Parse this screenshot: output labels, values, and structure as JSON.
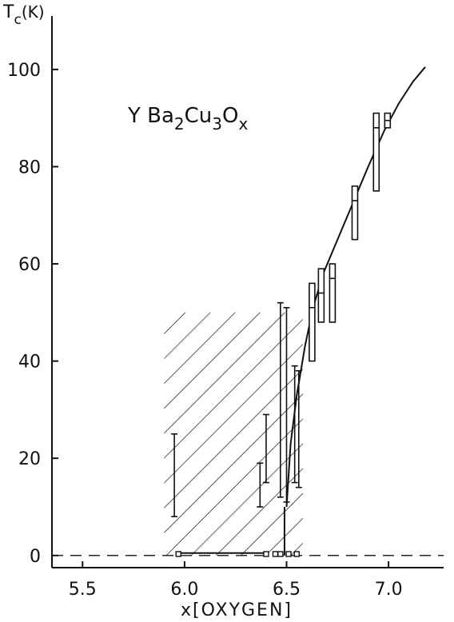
{
  "chart_data": {
    "type": "scatter",
    "title": "",
    "annotation": {
      "base": "Y Ba",
      "sub1": "2",
      "mid1": "Cu",
      "sub2": "3",
      "mid2": "O",
      "sub3": "x"
    },
    "ylabel": {
      "main": "T",
      "sub": "c",
      "unit": "(K)"
    },
    "xlabel": "x[OXYGEN]",
    "xlim": [
      5.35,
      7.27
    ],
    "ylim": [
      -2.5,
      111
    ],
    "x_ticks": [
      {
        "value": 5.5,
        "label": "5.5"
      },
      {
        "value": 6.0,
        "label": "6.0"
      },
      {
        "value": 6.5,
        "label": "6.5"
      },
      {
        "value": 7.0,
        "label": "7.0"
      }
    ],
    "y_ticks": [
      {
        "value": 0,
        "label": "0"
      },
      {
        "value": 20,
        "label": "20"
      },
      {
        "value": 40,
        "label": "40"
      },
      {
        "value": 60,
        "label": "60"
      },
      {
        "value": 80,
        "label": "80"
      },
      {
        "value": 100,
        "label": "100"
      }
    ],
    "grid": false,
    "hatched_region": {
      "x": [
        5.9,
        6.58
      ],
      "y": [
        0,
        50
      ]
    },
    "zero_dashed_line": 0,
    "error_bars": [
      {
        "x": 5.95,
        "low": 8,
        "high": 25
      },
      {
        "x": 6.37,
        "low": 10,
        "high": 19
      },
      {
        "x": 6.4,
        "low": 15,
        "high": 29
      },
      {
        "x": 6.47,
        "low": 12,
        "high": 52
      },
      {
        "x": 6.5,
        "low": 11,
        "high": 51
      },
      {
        "x": 6.54,
        "low": 15,
        "high": 39
      },
      {
        "x": 6.56,
        "low": 14,
        "high": 38
      }
    ],
    "boxes": [
      {
        "x": 6.625,
        "low": 40,
        "high": 56,
        "mid": 51
      },
      {
        "x": 6.67,
        "low": 48,
        "high": 59,
        "mid": 54
      },
      {
        "x": 6.725,
        "low": 48,
        "high": 60,
        "mid": 57
      },
      {
        "x": 6.835,
        "low": 65,
        "high": 76,
        "mid": 73
      },
      {
        "x": 6.94,
        "low": 75,
        "high": 91,
        "mid": 88
      },
      {
        "x": 6.995,
        "low": 88,
        "high": 91,
        "mid": 89.5
      }
    ],
    "zero_points": [
      {
        "x": 5.97,
        "y": 0.3
      },
      {
        "x": 6.4,
        "y": 0.3
      },
      {
        "x": 6.445,
        "y": 0.3
      },
      {
        "x": 6.47,
        "y": 0.3
      },
      {
        "x": 6.51,
        "y": 0.3
      },
      {
        "x": 6.55,
        "y": 0.3
      }
    ],
    "zero_segment": {
      "x": [
        5.97,
        6.4
      ],
      "y": 0.5
    },
    "curve": [
      [
        6.5,
        10
      ],
      [
        6.52,
        23
      ],
      [
        6.55,
        33
      ],
      [
        6.59,
        43
      ],
      [
        6.63,
        51
      ],
      [
        6.68,
        58
      ],
      [
        6.75,
        65
      ],
      [
        6.82,
        72
      ],
      [
        6.9,
        80
      ],
      [
        6.98,
        87.5
      ],
      [
        7.05,
        93
      ],
      [
        7.12,
        97.5
      ],
      [
        7.18,
        100.5
      ]
    ],
    "vertical_line": {
      "x": 6.49,
      "y": [
        0,
        10
      ]
    }
  }
}
